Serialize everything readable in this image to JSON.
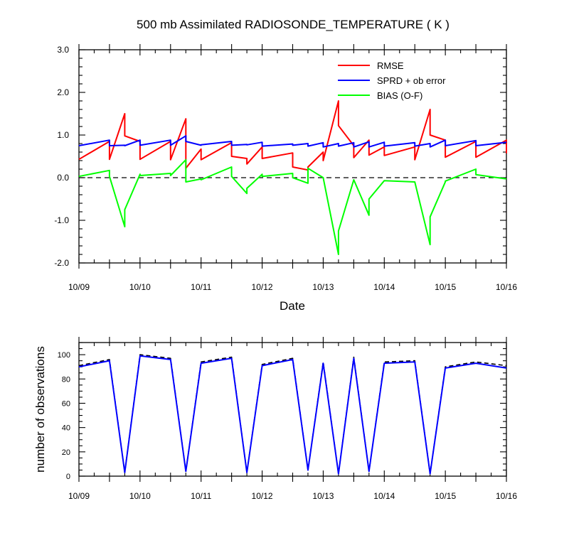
{
  "chart_data": [
    {
      "type": "line",
      "title": "500 mb Assimilated RADIOSONDE_TEMPERATURE ( K )",
      "xlabel": "Date",
      "ylabel": "",
      "xlim": [
        0,
        7
      ],
      "ylim": [
        -2.0,
        3.0
      ],
      "x_tick_labels": [
        "10/09",
        "10/10",
        "10/11",
        "10/12",
        "10/13",
        "10/14",
        "10/15",
        "10/16"
      ],
      "y_tick_labels": [
        "-2.0",
        "-1.0",
        "0.0",
        "1.0",
        "2.0",
        "3.0"
      ],
      "legend_position": "top-right",
      "reference_line": {
        "y": 0.0,
        "style": "dashed",
        "color": "#000000"
      },
      "series": [
        {
          "name": "RMSE",
          "color": "#ff0000",
          "x": [
            0.0,
            0.5,
            0.5,
            0.75,
            0.75,
            1.0,
            1.0,
            1.5,
            1.5,
            1.75,
            1.75,
            2.0,
            2.0,
            2.5,
            2.5,
            2.75,
            2.75,
            3.0,
            3.0,
            3.5,
            3.5,
            3.75,
            3.75,
            4.0,
            4.0,
            4.25,
            4.25,
            4.5,
            4.5,
            4.75,
            4.75,
            5.0,
            5.0,
            5.5,
            5.5,
            5.75,
            5.75,
            6.0,
            6.0,
            6.5,
            6.5,
            7.0,
            7.0
          ],
          "y": [
            0.43,
            0.85,
            0.43,
            1.5,
            0.98,
            0.85,
            0.43,
            0.85,
            0.42,
            1.38,
            0.22,
            0.67,
            0.42,
            0.82,
            0.5,
            0.45,
            0.32,
            0.72,
            0.45,
            0.58,
            0.25,
            0.18,
            0.25,
            0.6,
            0.4,
            1.8,
            1.22,
            0.75,
            0.47,
            0.88,
            0.53,
            0.72,
            0.52,
            0.72,
            0.42,
            1.6,
            1.0,
            0.88,
            0.48,
            0.85,
            0.48,
            0.88,
            0.57
          ]
        },
        {
          "name": "SPRD + ob error",
          "color": "#0000ff",
          "x": [
            0.0,
            0.5,
            0.5,
            0.75,
            0.75,
            1.0,
            1.0,
            1.5,
            1.5,
            1.75,
            1.75,
            2.0,
            2.0,
            2.5,
            2.5,
            2.75,
            2.75,
            3.0,
            3.0,
            3.5,
            3.5,
            3.75,
            3.75,
            4.0,
            4.0,
            4.25,
            4.25,
            4.5,
            4.5,
            4.75,
            4.75,
            5.0,
            5.0,
            5.5,
            5.5,
            5.75,
            5.75,
            6.0,
            6.0,
            6.5,
            6.5,
            7.0
          ],
          "y": [
            0.75,
            0.88,
            0.75,
            0.76,
            0.75,
            0.88,
            0.76,
            0.88,
            0.76,
            0.98,
            0.85,
            0.76,
            0.77,
            0.85,
            0.76,
            0.78,
            0.77,
            0.83,
            0.74,
            0.79,
            0.76,
            0.8,
            0.74,
            0.82,
            0.72,
            0.8,
            0.74,
            0.82,
            0.72,
            0.84,
            0.72,
            0.83,
            0.74,
            0.82,
            0.74,
            0.8,
            0.72,
            0.88,
            0.75,
            0.87,
            0.75,
            0.83
          ]
        },
        {
          "name": "BIAS (O-F)",
          "color": "#00ff00",
          "x": [
            0.0,
            0.5,
            0.5,
            0.75,
            0.75,
            1.0,
            1.0,
            1.5,
            1.5,
            1.75,
            1.75,
            2.0,
            2.0,
            2.5,
            2.5,
            2.75,
            2.75,
            3.0,
            3.0,
            3.5,
            3.5,
            3.75,
            3.75,
            4.0,
            4.0,
            4.25,
            4.25,
            4.5,
            4.5,
            4.75,
            4.75,
            5.0,
            5.0,
            5.5,
            5.5,
            5.75,
            5.75,
            6.0,
            6.0,
            6.5,
            6.5,
            7.0
          ],
          "y": [
            0.03,
            0.17,
            0.03,
            -1.15,
            -0.75,
            0.08,
            0.05,
            0.1,
            0.05,
            0.42,
            -0.1,
            -0.03,
            -0.05,
            0.25,
            0.03,
            -0.37,
            -0.25,
            0.08,
            0.03,
            0.1,
            0.0,
            -0.13,
            0.22,
            0.0,
            0.0,
            -1.8,
            -1.25,
            -0.05,
            -0.05,
            -0.88,
            -0.5,
            -0.07,
            -0.07,
            -0.1,
            -0.1,
            -1.57,
            -0.92,
            -0.1,
            -0.08,
            0.2,
            0.07,
            -0.03
          ]
        }
      ]
    },
    {
      "type": "line",
      "title": "",
      "xlabel": "",
      "ylabel": "number of observations",
      "xlim": [
        0,
        7
      ],
      "ylim": [
        0,
        110
      ],
      "x_tick_labels": [
        "10/09",
        "10/10",
        "10/11",
        "10/12",
        "10/13",
        "10/14",
        "10/15",
        "10/16"
      ],
      "y_tick_labels": [
        "0",
        "20",
        "40",
        "60",
        "80",
        "100"
      ],
      "series": [
        {
          "color": "#000000",
          "style": "dashed",
          "x": [
            0.0,
            0.5,
            0.75,
            1.0,
            1.5,
            1.75,
            2.0,
            2.5,
            2.75,
            3.0,
            3.5,
            3.75,
            4.0,
            4.25,
            4.5,
            4.75,
            5.0,
            5.5,
            5.75,
            6.0,
            6.5,
            7.0
          ],
          "y": [
            91,
            96,
            3,
            100,
            97,
            4,
            94,
            98,
            3,
            92,
            97,
            5,
            94,
            2,
            98,
            4,
            94,
            95,
            2,
            90,
            94,
            91
          ]
        },
        {
          "color": "#0000ff",
          "style": "solid",
          "x": [
            0.0,
            0.5,
            0.75,
            1.0,
            1.5,
            1.75,
            2.0,
            2.5,
            2.75,
            3.0,
            3.5,
            3.75,
            4.0,
            4.25,
            4.5,
            4.75,
            5.0,
            5.5,
            5.75,
            6.0,
            6.5,
            7.0
          ],
          "y": [
            90,
            95,
            3,
            99,
            96,
            4,
            93,
            97,
            3,
            91,
            96,
            5,
            93,
            2,
            97,
            4,
            93,
            94,
            2,
            89,
            93,
            89
          ]
        }
      ]
    }
  ]
}
